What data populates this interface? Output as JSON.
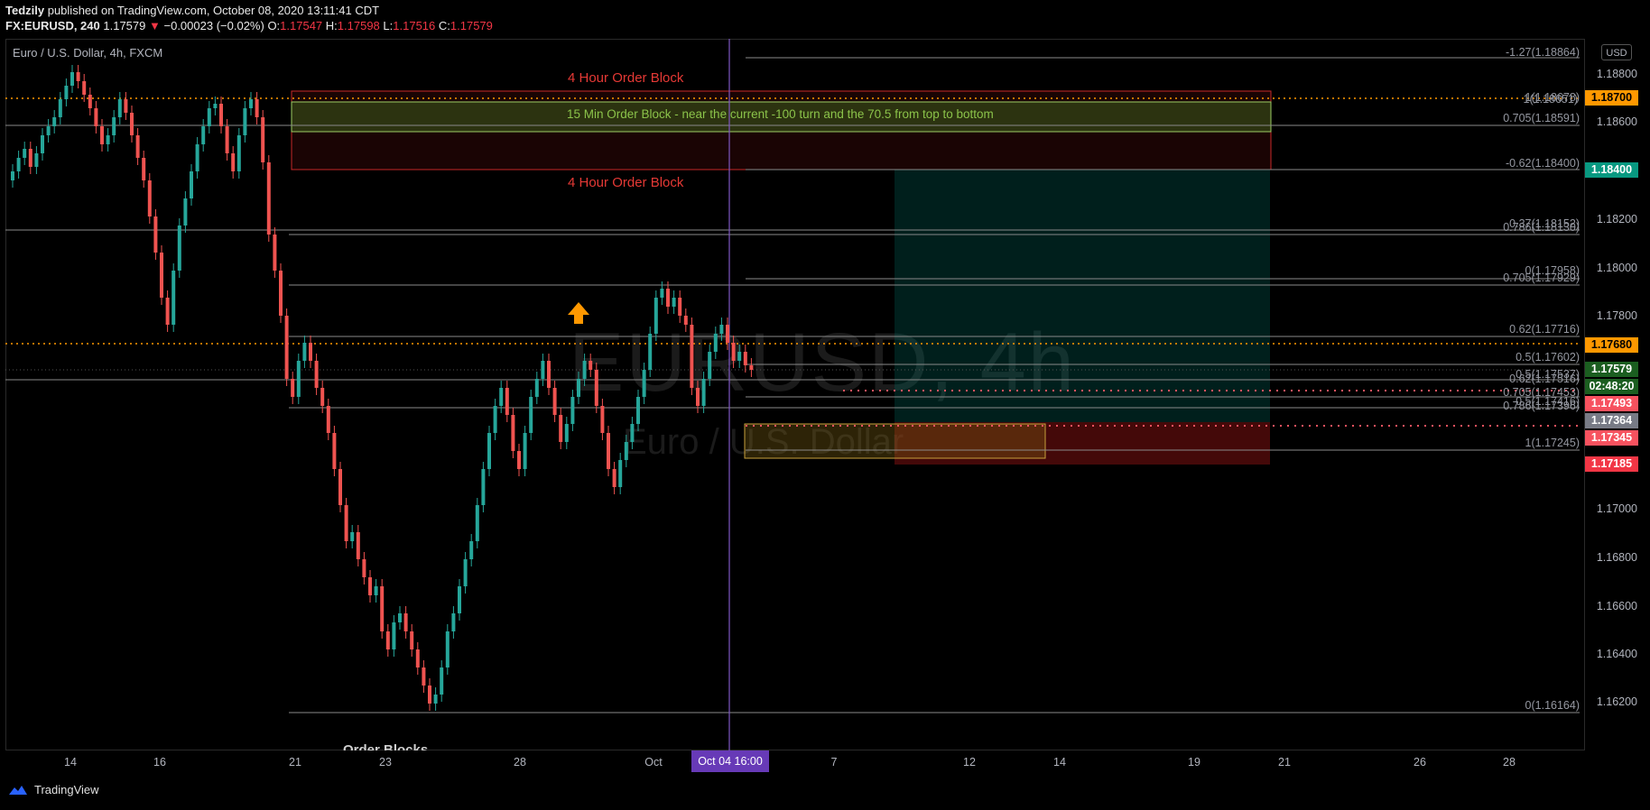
{
  "header": {
    "author": "Tedzily",
    "published": " published on TradingView.com, October 08, 2020 13:11:41 CDT",
    "symbol": "FX:EURUSD, 240",
    "last": "1.17579",
    "change": "−0.00023 (−0.02%)",
    "o_label": "O:",
    "o": "1.17547",
    "h_label": "H:",
    "h": "1.17598",
    "l_label": "L:",
    "l": "1.17516",
    "c_label": "C:",
    "c": "1.17579"
  },
  "legend": "Euro / U.S. Dollar, 4h, FXCM",
  "watermark": {
    "main": "EURUSD, 4h",
    "sub": "Euro / U.S. Dollar"
  },
  "currency_button": "USD",
  "price_axis": [
    "1.18800",
    "1.18600",
    "1.18200",
    "1.18000",
    "1.17800",
    "1.17000",
    "1.16800",
    "1.16600",
    "1.16400",
    "1.16200"
  ],
  "price_tags": [
    {
      "value": "1.18700",
      "bg": "#ff9800",
      "fg": "#000000"
    },
    {
      "value": "1.18400",
      "bg": "#089981",
      "fg": "#ffffff"
    },
    {
      "value": "1.17680",
      "bg": "#ff9800",
      "fg": "#000000"
    },
    {
      "value": "1.17579",
      "bg": "#1b5e20",
      "fg": "#ffffff"
    },
    {
      "value": "02:48:20",
      "bg": "#1b5e20",
      "fg": "#ffffff"
    },
    {
      "value": "1.17493",
      "bg": "#f7525f",
      "fg": "#ffffff"
    },
    {
      "value": "1.17364",
      "bg": "#787b86",
      "fg": "#ffffff"
    },
    {
      "value": "1.17345",
      "bg": "#f7525f",
      "fg": "#ffffff"
    },
    {
      "value": "1.17185",
      "bg": "#f23645",
      "fg": "#ffffff"
    }
  ],
  "fib_labels": [
    "-1.27(1.18864)",
    "1(1.18678)",
    "1(1.18651)",
    "0.705(1.18591)",
    "-0.62(1.18400)",
    "0.37(1.18152)",
    "0.786(1.18130)",
    "0(1.17958)",
    "0.705(1.17929)",
    "0.62(1.17716)",
    "0.5(1.17602)",
    "0.5(1.17537)",
    "0.62(1.17516)",
    "0.705(1.17453)",
    "0.5(1.17416)",
    "0.786(1.17396)",
    "1(1.17245)",
    "0(1.16164)"
  ],
  "annotations": {
    "ob4h_top": "4 Hour Order Block",
    "ob15m": "15 Min Order Block - near the current -100 turn and the 70.5 from top to bottom",
    "ob4h_bottom": "4 Hour Order Block",
    "order_blocks": "Order Blocks"
  },
  "time_axis": [
    "14",
    "16",
    "21",
    "23",
    "28",
    "Oct",
    "7",
    "12",
    "14",
    "19",
    "21",
    "26",
    "28"
  ],
  "time_highlight": "Oct 04   16:00",
  "footer": "TradingView",
  "colors": {
    "bull": "#26a69a",
    "bear": "#ef5350",
    "cursor": "#673ab7"
  }
}
